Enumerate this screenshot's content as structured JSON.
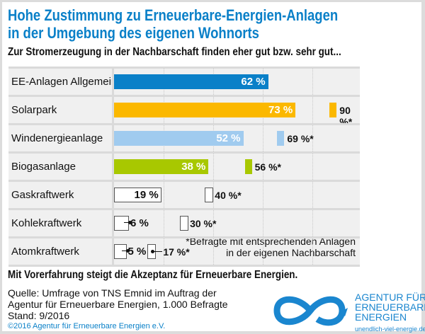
{
  "title_lines": [
    "Hohe Zustimmung zu Erneuerbare-Energien-Anlagen",
    "in der Umgebung des eigenen Wohnorts"
  ],
  "subtitle": "Zur Stromerzeugung in der Nachbarschaft finden eher gut bzw. sehr gut...",
  "chart_data": {
    "type": "bar",
    "orientation": "horizontal",
    "categories": [
      "EE-Anlagen Allgemein",
      "Solarpark",
      "Windenergieanlage",
      "Biogasanlage",
      "Gaskraftwerk",
      "Kohlekraftwerk",
      "Atomkraftwerk"
    ],
    "series": [
      {
        "values": [
          62,
          73,
          52,
          38,
          19,
          6,
          5
        ],
        "labels": [
          "62 %",
          "73 %",
          "52 %",
          "38 %",
          "19 %",
          "6 %",
          "5 %"
        ]
      },
      {
        "name": "*Befragte mit entsprechenden Anlagen in der eigenen Nachbarschaft",
        "values": [
          null,
          90,
          69,
          56,
          40,
          30,
          17
        ],
        "labels": [
          "",
          "90 %*",
          "69 %*",
          "56 %*",
          "40 %*",
          "30 %*",
          "17 %*"
        ]
      }
    ],
    "colors": [
      "#0a80c8",
      "#fbb800",
      "#a0cbef",
      "#a8c800",
      "#ffffff",
      "#ffffff",
      "#ffffff"
    ],
    "xlim": [
      0,
      100
    ],
    "grid": true
  },
  "footnote_lines": [
    "*Befragte mit entsprechenden Anlagen",
    "in der eigenen Nachbarschaft"
  ],
  "headline": "Mit Vorerfahrung steigt die Akzeptanz für Erneuerbare Energien.",
  "source_lines": [
    "Quelle: Umfrage von TNS Emnid im Auftrag der",
    "Agentur für Erneuerbare Energien, 1.000 Befragte",
    "Stand: 9/2016"
  ],
  "copyright": "©2016 Agentur für Erneuerbare Energien e.V.",
  "logo": {
    "lines": [
      "AGENTUR FÜR",
      "ERNEUERBARE",
      "ENERGIEN"
    ],
    "url": "unendlich-viel-energie.de",
    "color": "#1a86cf"
  }
}
